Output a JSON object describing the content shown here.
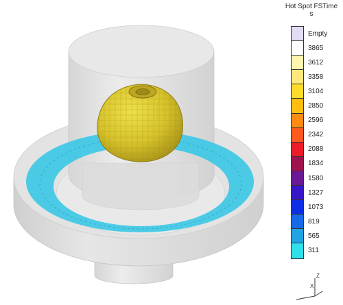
{
  "legend": {
    "title_line1": "Hot Spot FSTime",
    "title_line2": "s",
    "entries": [
      {
        "label": "Empty",
        "color": "#e4dcf4"
      },
      {
        "label": "3865",
        "color": "#ffffff"
      },
      {
        "label": "3612",
        "color": "#fff6b0"
      },
      {
        "label": "3358",
        "color": "#ffe97a"
      },
      {
        "label": "3104",
        "color": "#ffdb2a"
      },
      {
        "label": "2850",
        "color": "#ffbe10"
      },
      {
        "label": "2596",
        "color": "#ff8c12"
      },
      {
        "label": "2342",
        "color": "#ff5a1e"
      },
      {
        "label": "2088",
        "color": "#ee1c2a"
      },
      {
        "label": "1834",
        "color": "#a0124e"
      },
      {
        "label": "1580",
        "color": "#6a1894"
      },
      {
        "label": "1327",
        "color": "#3616c8"
      },
      {
        "label": "1073",
        "color": "#0e2ee6"
      },
      {
        "label": "819",
        "color": "#156ae8"
      },
      {
        "label": "565",
        "color": "#20a4e4"
      },
      {
        "label": "311",
        "color": "#2fe0ea"
      }
    ]
  },
  "axes": {
    "z_label": "Z",
    "x_label": "X"
  },
  "colors": {
    "hotspot": "#e2cf2e",
    "ring": "#3ec8e6",
    "casting": "#e4e4e4"
  }
}
